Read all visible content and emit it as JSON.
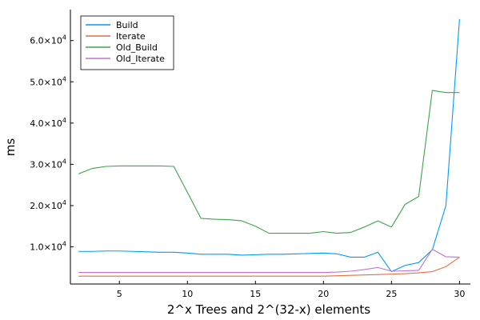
{
  "chart_data": {
    "type": "line",
    "title": "",
    "xlabel": "2^x Trees and 2^(32-x) elements",
    "ylabel": "ms",
    "xlim": [
      1.4,
      30.8
    ],
    "ylim": [
      1000,
      67500
    ],
    "xticks": [
      5,
      10,
      15,
      20,
      25,
      30
    ],
    "xtick_labels": [
      "5",
      "10",
      "15",
      "20",
      "25",
      "30"
    ],
    "yticks": [
      10000,
      20000,
      30000,
      40000,
      50000,
      60000
    ],
    "ytick_labels": [
      {
        "mantissa": "1.0×10",
        "exp": "4"
      },
      {
        "mantissa": "2.0×10",
        "exp": "4"
      },
      {
        "mantissa": "3.0×10",
        "exp": "4"
      },
      {
        "mantissa": "4.0×10",
        "exp": "4"
      },
      {
        "mantissa": "5.0×10",
        "exp": "4"
      },
      {
        "mantissa": "6.0×10",
        "exp": "4"
      }
    ],
    "grid": false,
    "legend_position": "top-left",
    "x": [
      2,
      3,
      4,
      5,
      6,
      7,
      8,
      9,
      10,
      11,
      12,
      13,
      14,
      15,
      16,
      17,
      18,
      19,
      20,
      21,
      22,
      23,
      24,
      25,
      26,
      27,
      28,
      29,
      30
    ],
    "series": [
      {
        "name": "Build",
        "color": "#009af9",
        "values": [
          8900,
          8900,
          9000,
          9000,
          8900,
          8800,
          8700,
          8700,
          8500,
          8200,
          8200,
          8200,
          8000,
          8100,
          8200,
          8200,
          8300,
          8400,
          8500,
          8300,
          7500,
          7500,
          8700,
          4000,
          5500,
          6200,
          9300,
          20000,
          65200
        ]
      },
      {
        "name": "Iterate",
        "color": "#e26f46",
        "values": [
          2900,
          2900,
          2900,
          2900,
          2900,
          2900,
          2900,
          2900,
          2900,
          2900,
          2900,
          2900,
          2900,
          2900,
          2900,
          2900,
          2900,
          2900,
          2900,
          3000,
          3100,
          3200,
          3300,
          3400,
          3500,
          3700,
          4000,
          5200,
          7500
        ]
      },
      {
        "name": "Old_Build",
        "color": "#3da44d",
        "values": [
          27700,
          29000,
          29500,
          29600,
          29600,
          29600,
          29600,
          29500,
          23200,
          16900,
          16700,
          16600,
          16300,
          15000,
          13300,
          13300,
          13300,
          13300,
          13700,
          13300,
          13500,
          14800,
          16300,
          14800,
          20300,
          22200,
          47900,
          47400,
          47400
        ]
      },
      {
        "name": "Old_Iterate",
        "color": "#c271d2",
        "values": [
          3800,
          3800,
          3800,
          3800,
          3800,
          3800,
          3800,
          3800,
          3800,
          3800,
          3800,
          3800,
          3800,
          3800,
          3800,
          3800,
          3800,
          3800,
          3800,
          3900,
          4100,
          4500,
          5000,
          4100,
          4200,
          4300,
          9400,
          7600,
          7500
        ]
      }
    ]
  }
}
